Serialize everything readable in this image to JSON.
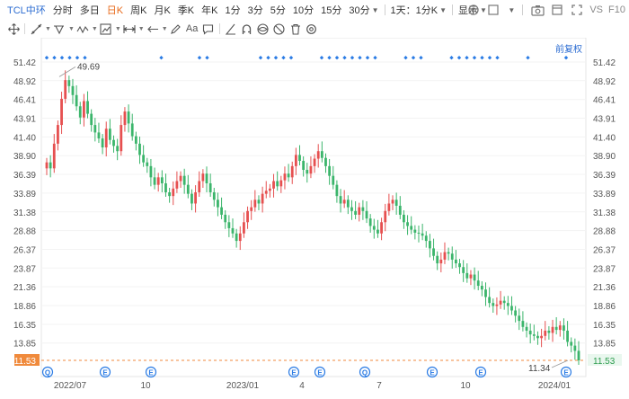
{
  "toolbar": {
    "stock_name": "TCL中环",
    "periods": [
      "分时",
      "多日",
      "日K",
      "周K",
      "月K",
      "季K",
      "年K",
      "1分",
      "3分",
      "5分",
      "10分",
      "15分",
      "30分"
    ],
    "active_period": "日K",
    "multi_period_select": "1天：1分K",
    "display_label": "显示",
    "vs_label": "VS",
    "f10_label": "F10"
  },
  "drawbar": {
    "tools": [
      "move-icon",
      "line-icon",
      "channel-icon",
      "wave-icon",
      "measure-icon",
      "arrow-select-icon",
      "text-tool",
      "comment-icon",
      "angle-icon",
      "magnet-icon",
      "eye-icon",
      "hide-icon",
      "trash-icon",
      "settings-icon"
    ],
    "text_tool_label": "Aa"
  },
  "chart": {
    "adjust_label": "前复权",
    "max_label": "49.69",
    "min_label": "11.34",
    "current_price": "11.53",
    "y_ticks": [
      "51.42",
      "48.92",
      "46.41",
      "43.91",
      "41.40",
      "38.90",
      "36.39",
      "33.89",
      "31.38",
      "28.88",
      "26.37",
      "23.87",
      "21.36",
      "18.86",
      "16.35",
      "13.85",
      "11.53"
    ],
    "x_ticks": [
      "2022/07",
      "10",
      "2023/01",
      "4",
      "7",
      "10",
      "2024/01"
    ],
    "event_markers": [
      {
        "letter": "Q"
      },
      {
        "letter": "E"
      },
      {
        "letter": "E"
      },
      {
        "letter": "E"
      },
      {
        "letter": "E"
      },
      {
        "letter": "Q"
      },
      {
        "letter": "E"
      },
      {
        "letter": "E"
      },
      {
        "letter": "E"
      }
    ],
    "colors": {
      "up": "#e65050",
      "down": "#3bb56b",
      "marker": "#2a7be4",
      "price_line": "#f08a3c",
      "axis_text": "#555555"
    },
    "close_series": [
      38.0,
      37.2,
      40.5,
      43.0,
      46.5,
      49.0,
      48.2,
      47.0,
      45.5,
      44.0,
      46.2,
      44.5,
      43.0,
      42.0,
      41.2,
      40.0,
      42.5,
      41.0,
      40.2,
      39.5,
      43.0,
      44.8,
      43.2,
      41.5,
      40.5,
      39.0,
      38.0,
      37.5,
      36.0,
      35.0,
      36.0,
      35.2,
      34.0,
      33.5,
      34.5,
      35.5,
      36.2,
      35.0,
      33.8,
      32.5,
      34.0,
      35.5,
      36.5,
      35.2,
      34.0,
      33.0,
      32.0,
      31.0,
      30.0,
      29.2,
      28.5,
      27.5,
      28.5,
      30.0,
      31.5,
      32.0,
      33.0,
      32.5,
      33.8,
      34.2,
      34.5,
      35.5,
      34.8,
      35.6,
      36.5,
      36.0,
      37.5,
      39.0,
      38.2,
      37.0,
      36.5,
      37.5,
      38.5,
      39.5,
      38.6,
      37.5,
      36.2,
      35.0,
      33.5,
      32.5,
      33.0,
      32.0,
      31.5,
      31.0,
      32.0,
      31.5,
      30.5,
      29.5,
      29.0,
      28.5,
      30.0,
      31.5,
      32.5,
      33.0,
      32.2,
      31.0,
      30.0,
      29.5,
      29.0,
      28.6,
      28.5,
      28.2,
      27.5,
      26.5,
      25.5,
      24.5,
      25.0,
      26.0,
      25.8,
      25.0,
      24.5,
      24.0,
      23.2,
      22.5,
      23.0,
      22.2,
      21.5,
      21.0,
      20.0,
      19.2,
      18.8,
      19.0,
      19.5,
      19.2,
      18.8,
      18.2,
      17.5,
      16.8,
      16.0,
      15.5,
      15.0,
      14.8,
      14.5,
      14.8,
      15.5,
      15.2,
      16.0,
      15.6,
      16.2,
      15.5,
      14.0,
      13.5,
      12.8,
      11.53
    ]
  }
}
